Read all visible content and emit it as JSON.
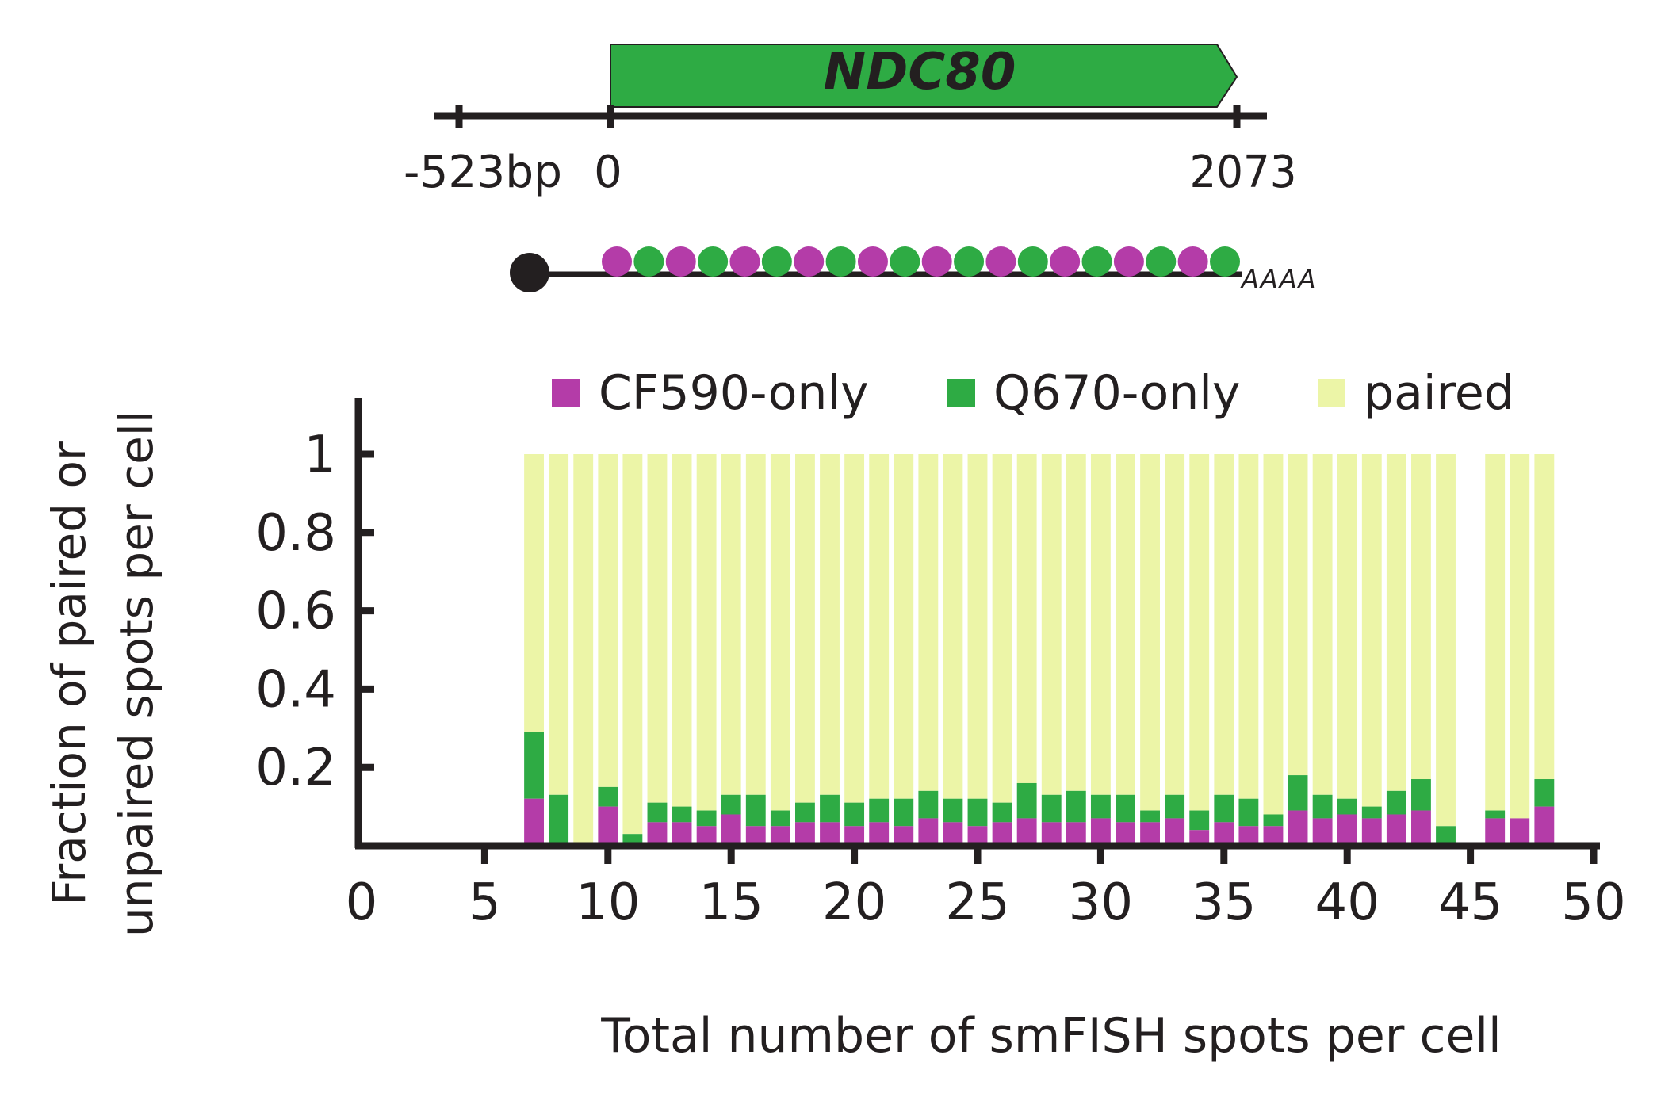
{
  "gene_diagram": {
    "gene_name": "NDC80",
    "positions": [
      "-523bp",
      "0",
      "2073"
    ],
    "polyA": "AAAA",
    "probe_colors": [
      "#b43ca8",
      "#2eab44"
    ],
    "probe_count": 20,
    "gene_color": "#2eab44"
  },
  "chart_data": {
    "type": "bar",
    "stacked": true,
    "title": "",
    "xlabel": "Total number of smFISH spots per cell",
    "ylabel_lines": [
      "Fraction of paired or",
      "unpaired spots per cell"
    ],
    "xlim": [
      0,
      50
    ],
    "ylim": [
      0,
      1.1
    ],
    "xticks": [
      0,
      5,
      10,
      15,
      20,
      25,
      30,
      35,
      40,
      45,
      50
    ],
    "yticks": [
      0.2,
      0.4,
      0.6,
      0.8,
      1
    ],
    "yticklabels": [
      "0.2",
      "0.4",
      "0.6",
      "0.8",
      "1"
    ],
    "legend_position": "top",
    "series": [
      {
        "name": "CF590-only",
        "color": "#b43ca8"
      },
      {
        "name": "Q670-only",
        "color": "#2eab44"
      },
      {
        "name": "paired",
        "color": "#ecf5a7"
      }
    ],
    "x": [
      7,
      8,
      9,
      10,
      11,
      12,
      13,
      14,
      15,
      16,
      17,
      18,
      19,
      20,
      21,
      22,
      23,
      24,
      25,
      26,
      27,
      28,
      29,
      30,
      31,
      32,
      33,
      34,
      35,
      36,
      37,
      38,
      39,
      40,
      41,
      42,
      43,
      44,
      46,
      47,
      48
    ],
    "cf590_only": [
      0.12,
      0,
      0,
      0.1,
      0,
      0.06,
      0.06,
      0.05,
      0.08,
      0.05,
      0.05,
      0.06,
      0.06,
      0.05,
      0.06,
      0.05,
      0.07,
      0.06,
      0.05,
      0.06,
      0.07,
      0.06,
      0.06,
      0.07,
      0.06,
      0.06,
      0.07,
      0.04,
      0.06,
      0.05,
      0.05,
      0.09,
      0.07,
      0.08,
      0.07,
      0.08,
      0.09,
      0,
      0.07,
      0.07,
      0.1
    ],
    "q670_only": [
      0.17,
      0.13,
      0,
      0.05,
      0.03,
      0.05,
      0.04,
      0.04,
      0.05,
      0.08,
      0.04,
      0.05,
      0.07,
      0.06,
      0.06,
      0.07,
      0.07,
      0.06,
      0.07,
      0.05,
      0.09,
      0.07,
      0.08,
      0.06,
      0.07,
      0.03,
      0.06,
      0.05,
      0.07,
      0.07,
      0.03,
      0.09,
      0.06,
      0.04,
      0.03,
      0.06,
      0.08,
      0.05,
      0.02,
      0,
      0.07
    ]
  }
}
